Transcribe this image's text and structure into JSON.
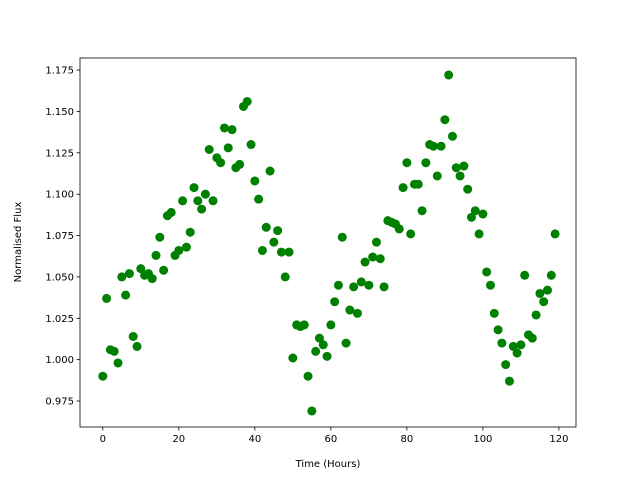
{
  "chart_data": {
    "type": "scatter",
    "title": "",
    "xlabel": "Time (Hours)",
    "ylabel": "Normalised Flux",
    "xlim": [
      -6,
      124.5
    ],
    "ylim": [
      0.9593,
      1.1823
    ],
    "xticks": [
      0,
      20,
      40,
      60,
      80,
      100,
      120
    ],
    "xtick_labels": [
      "0",
      "20",
      "40",
      "60",
      "80",
      "100",
      "120"
    ],
    "yticks": [
      0.975,
      1.0,
      1.025,
      1.05,
      1.075,
      1.1,
      1.125,
      1.15,
      1.175
    ],
    "ytick_labels": [
      "0.975",
      "1.000",
      "1.025",
      "1.050",
      "1.075",
      "1.100",
      "1.125",
      "1.150",
      "1.175"
    ],
    "grid": false,
    "color": "#008000",
    "x": [
      0,
      1,
      2,
      3,
      4,
      5,
      6,
      7,
      8,
      9,
      10,
      11,
      12,
      13,
      14,
      15,
      16,
      17,
      18,
      19,
      20,
      21,
      22,
      23,
      24,
      25,
      26,
      27,
      28,
      29,
      30,
      31,
      32,
      33,
      34,
      35,
      36,
      37,
      38,
      39,
      40,
      41,
      42,
      43,
      44,
      45,
      46,
      47,
      48,
      49,
      50,
      51,
      52,
      53,
      54,
      55,
      56,
      57,
      58,
      59,
      60,
      61,
      62,
      63,
      64,
      65,
      66,
      67,
      68,
      69,
      70,
      71,
      72,
      73,
      74,
      75,
      76,
      77,
      78,
      79,
      80,
      81,
      82,
      83,
      84,
      85,
      86,
      87,
      88,
      89,
      90,
      91,
      92,
      93,
      94,
      95,
      96,
      97,
      98,
      99,
      100,
      101,
      102,
      103,
      104,
      105,
      106,
      107,
      108,
      109,
      110,
      111,
      112,
      113,
      114,
      115,
      116,
      117,
      118,
      119
    ],
    "y": [
      0.99,
      1.037,
      1.006,
      1.005,
      0.998,
      1.05,
      1.039,
      1.052,
      1.014,
      1.008,
      1.055,
      1.051,
      1.052,
      1.049,
      1.063,
      1.074,
      1.054,
      1.087,
      1.089,
      1.063,
      1.066,
      1.096,
      1.068,
      1.077,
      1.104,
      1.096,
      1.091,
      1.1,
      1.127,
      1.096,
      1.122,
      1.119,
      1.14,
      1.128,
      1.139,
      1.116,
      1.118,
      1.153,
      1.156,
      1.13,
      1.108,
      1.097,
      1.066,
      1.08,
      1.114,
      1.071,
      1.078,
      1.065,
      1.05,
      1.065,
      1.001,
      1.021,
      1.02,
      1.021,
      0.99,
      0.969,
      1.005,
      1.013,
      1.009,
      1.002,
      1.021,
      1.035,
      1.045,
      1.074,
      1.01,
      1.03,
      1.044,
      1.028,
      1.047,
      1.059,
      1.045,
      1.062,
      1.071,
      1.061,
      1.044,
      1.084,
      1.083,
      1.082,
      1.079,
      1.104,
      1.119,
      1.076,
      1.106,
      1.106,
      1.09,
      1.119,
      1.13,
      1.129,
      1.111,
      1.129,
      1.145,
      1.172,
      1.135,
      1.116,
      1.111,
      1.117,
      1.103,
      1.086,
      1.09,
      1.076,
      1.088,
      1.053,
      1.045,
      1.028,
      1.018,
      1.01,
      0.997,
      0.987,
      1.008,
      1.004,
      1.009,
      1.051,
      1.015,
      1.013,
      1.027,
      1.04,
      1.035,
      1.042,
      1.051,
      1.076
    ]
  }
}
